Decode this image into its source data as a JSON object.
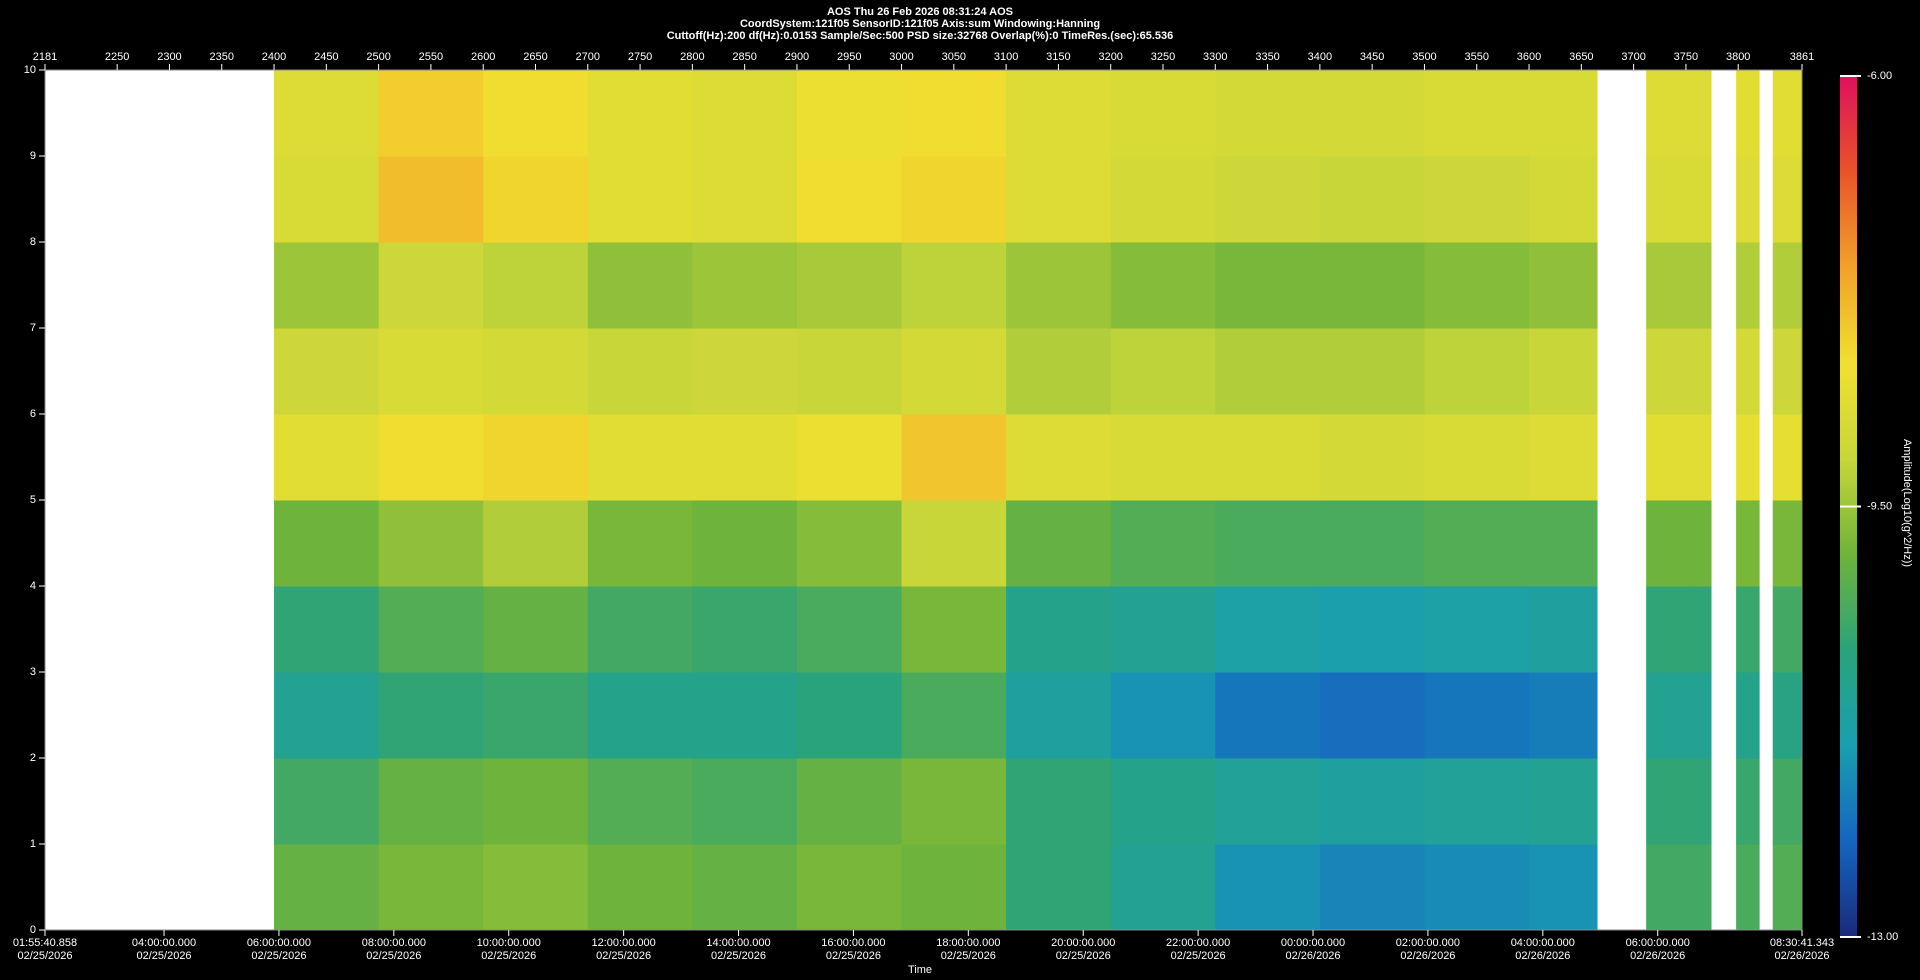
{
  "chart_data": {
    "type": "heatmap",
    "title": "AOS  Thu 26 Feb 2026 08:31:24  AOS",
    "subtitle": [
      "CoordSystem:121f05   SensorID:121f05   Axis:sum    Windowing:Hanning",
      "Cuttoff(Hz):200      df(Hz):0.0153      Sample/Sec:500      PSD size:32768      Overlap(%):0      TimeRes.(sec):65.536"
    ],
    "xlabel": "Time",
    "clabel": "Amplitude(Log10(g^2/Hz))",
    "xlim": [
      2181,
      3861
    ],
    "xticks": [
      2181,
      2250,
      2300,
      2350,
      2400,
      2450,
      2500,
      2550,
      2600,
      2650,
      2700,
      2750,
      2800,
      2850,
      2900,
      2950,
      3000,
      3050,
      3100,
      3150,
      3200,
      3250,
      3300,
      3350,
      3400,
      3450,
      3500,
      3550,
      3600,
      3650,
      3700,
      3750,
      3800,
      3861
    ],
    "x2lim": [
      0,
      110100.485
    ],
    "x2ticks": [
      {
        "value": 0,
        "label": "01:55:40.858\n02/25/2026"
      },
      {
        "value": 7459.142,
        "label": "04:00:00.000\n02/25/2026"
      },
      {
        "value": 14659.142,
        "label": "06:00:00.000\n02/25/2026"
      },
      {
        "value": 21859.142,
        "label": "08:00:00.000\n02/25/2026"
      },
      {
        "value": 29059.142,
        "label": "10:00:00.000\n02/25/2026"
      },
      {
        "value": 36259.142,
        "label": "12:00:00.000\n02/25/2026"
      },
      {
        "value": 43459.142,
        "label": "14:00:00.000\n02/25/2026"
      },
      {
        "value": 50659.142,
        "label": "16:00:00.000\n02/25/2026"
      },
      {
        "value": 57859.142,
        "label": "18:00:00.000\n02/25/2026"
      },
      {
        "value": 65059.142,
        "label": "20:00:00.000\n02/25/2026"
      },
      {
        "value": 72259.142,
        "label": "22:00:00.000\n02/25/2026"
      },
      {
        "value": 79459.142,
        "label": "00:00:00.000\n02/26/2026"
      },
      {
        "value": 86659.142,
        "label": "02:00:00.000\n02/26/2026"
      },
      {
        "value": 93859.142,
        "label": "04:00:00.000\n02/26/2026"
      },
      {
        "value": 101059.142,
        "label": "06:00:00.000\n02/26/2026"
      },
      {
        "value": 110100.485,
        "label": "08:30:41.343\n02/26/2026"
      }
    ],
    "ylim": [
      0,
      10
    ],
    "yticks": [
      0,
      1,
      2,
      3,
      4,
      5,
      6,
      7,
      8,
      9,
      10
    ],
    "xbins": [
      2181,
      2400,
      2500,
      2600,
      2700,
      2800,
      2900,
      3000,
      3100,
      3200,
      3300,
      3400,
      3500,
      3600,
      3665,
      3712,
      3755,
      3774,
      3798,
      3820,
      3833,
      3861
    ],
    "ybins": [
      0,
      1,
      2,
      3,
      4,
      5,
      6,
      7,
      8,
      9,
      10
    ],
    "values": [
      [
        null,
        -10.0,
        -9.8,
        -9.7,
        -9.9,
        -10.0,
        -9.8,
        -9.9,
        -10.6,
        -11.0,
        -11.6,
        -11.8,
        -11.7,
        -11.6,
        null,
        -10.4,
        -10.4,
        null,
        -10.3,
        null,
        -10.2
      ],
      [
        null,
        -10.4,
        -10.0,
        -9.9,
        -10.2,
        -10.3,
        -10.0,
        -9.8,
        -10.6,
        -10.9,
        -11.1,
        -11.2,
        -11.1,
        -11.0,
        null,
        -10.6,
        -10.6,
        null,
        -10.5,
        null,
        -10.4
      ],
      [
        null,
        -11.0,
        -10.6,
        -10.5,
        -10.9,
        -10.9,
        -10.7,
        -10.3,
        -11.2,
        -11.6,
        -12.0,
        -12.1,
        -12.0,
        -11.9,
        null,
        -11.0,
        -11.0,
        null,
        -10.9,
        null,
        -10.8
      ],
      [
        null,
        -10.6,
        -10.2,
        -10.0,
        -10.4,
        -10.5,
        -10.3,
        -9.8,
        -10.9,
        -11.0,
        -11.3,
        -11.4,
        -11.3,
        -11.2,
        null,
        -10.6,
        -10.6,
        null,
        -10.5,
        null,
        -10.4
      ],
      [
        null,
        -9.9,
        -9.6,
        -9.3,
        -9.8,
        -9.9,
        -9.7,
        -9.1,
        -10.0,
        -10.2,
        -10.3,
        -10.3,
        -10.2,
        -10.2,
        null,
        -9.9,
        -9.9,
        null,
        -9.8,
        null,
        -9.8
      ],
      [
        null,
        -8.6,
        -8.3,
        -8.2,
        -8.6,
        -8.6,
        -8.4,
        -8.0,
        -8.7,
        -8.8,
        -8.8,
        -8.9,
        -8.8,
        -8.7,
        null,
        -8.6,
        -8.6,
        null,
        -8.5,
        null,
        -8.5
      ],
      [
        null,
        -9.0,
        -8.8,
        -8.9,
        -9.1,
        -9.0,
        -9.1,
        -8.9,
        -9.3,
        -9.2,
        -9.3,
        -9.3,
        -9.2,
        -9.1,
        null,
        -9.0,
        -9.0,
        null,
        -8.9,
        null,
        -9.0
      ],
      [
        null,
        -9.5,
        -9.0,
        -9.2,
        -9.6,
        -9.5,
        -9.4,
        -9.2,
        -9.5,
        -9.7,
        -9.8,
        -9.8,
        -9.7,
        -9.6,
        null,
        -9.4,
        -9.4,
        null,
        -9.3,
        null,
        -9.3
      ],
      [
        null,
        -8.8,
        -7.9,
        -8.2,
        -8.6,
        -8.7,
        -8.3,
        -8.2,
        -8.7,
        -8.9,
        -9.0,
        -9.1,
        -9.0,
        -8.9,
        null,
        -8.8,
        -8.8,
        null,
        -8.7,
        null,
        -8.7
      ],
      [
        null,
        -8.7,
        -8.1,
        -8.3,
        -8.6,
        -8.7,
        -8.4,
        -8.3,
        -8.7,
        -8.8,
        -8.9,
        -8.9,
        -8.8,
        -8.8,
        null,
        -8.7,
        -8.7,
        null,
        -8.6,
        null,
        -8.6
      ]
    ],
    "clim": [
      -13,
      -6
    ],
    "cticks": [
      {
        "value": -6,
        "label": "-6.00"
      },
      {
        "value": -9.5,
        "label": "-9.50"
      },
      {
        "value": -13,
        "label": "-13.00"
      }
    ],
    "colorscale": [
      "#1b2a7a",
      "#1565c0",
      "#1a9fb0",
      "#2aa37a",
      "#6fb33a",
      "#c8d63a",
      "#f0e030",
      "#f2a12a",
      "#e8542a",
      "#e0115f"
    ]
  }
}
